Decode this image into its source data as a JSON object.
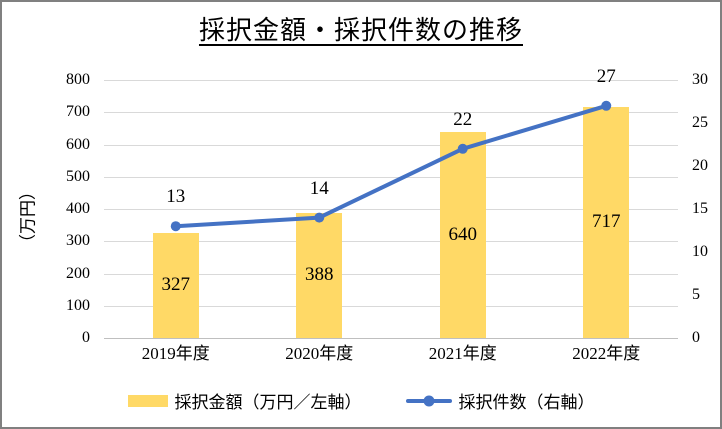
{
  "title": "採択金額・採択件数の推移",
  "chart_data": {
    "type": "bar",
    "subtype": "combo-bar-line-dual-axis",
    "categories": [
      "2019年度",
      "2020年度",
      "2021年度",
      "2022年度"
    ],
    "series": [
      {
        "name": "採択金額（万円／左軸）",
        "type": "bar",
        "axis": "left",
        "color": "#FFD966",
        "values": [
          327,
          388,
          640,
          717
        ],
        "data_labels": [
          "327",
          "388",
          "640",
          "717"
        ]
      },
      {
        "name": "採択件数（右軸）",
        "type": "line",
        "axis": "right",
        "color": "#4472C4",
        "values": [
          13,
          14,
          22,
          27
        ],
        "data_labels": [
          "13",
          "14",
          "22",
          "27"
        ]
      }
    ],
    "left_axis": {
      "title": "（万円）",
      "min": 0,
      "max": 800,
      "step": 100,
      "ticks": [
        "0",
        "100",
        "200",
        "300",
        "400",
        "500",
        "600",
        "700",
        "800"
      ]
    },
    "right_axis": {
      "title": "",
      "min": 0,
      "max": 30,
      "step": 5,
      "ticks": [
        "0",
        "5",
        "10",
        "15",
        "20",
        "25",
        "30"
      ]
    },
    "grid": true,
    "legend_position": "bottom",
    "data_labels": true
  },
  "colors": {
    "bar": "#FFD966",
    "line": "#4472C4",
    "gridline": "#D9D9D9",
    "axis_line": "#BFBFBF",
    "frame_border": "#808080",
    "text": "#000000",
    "background": "#FFFFFF"
  }
}
